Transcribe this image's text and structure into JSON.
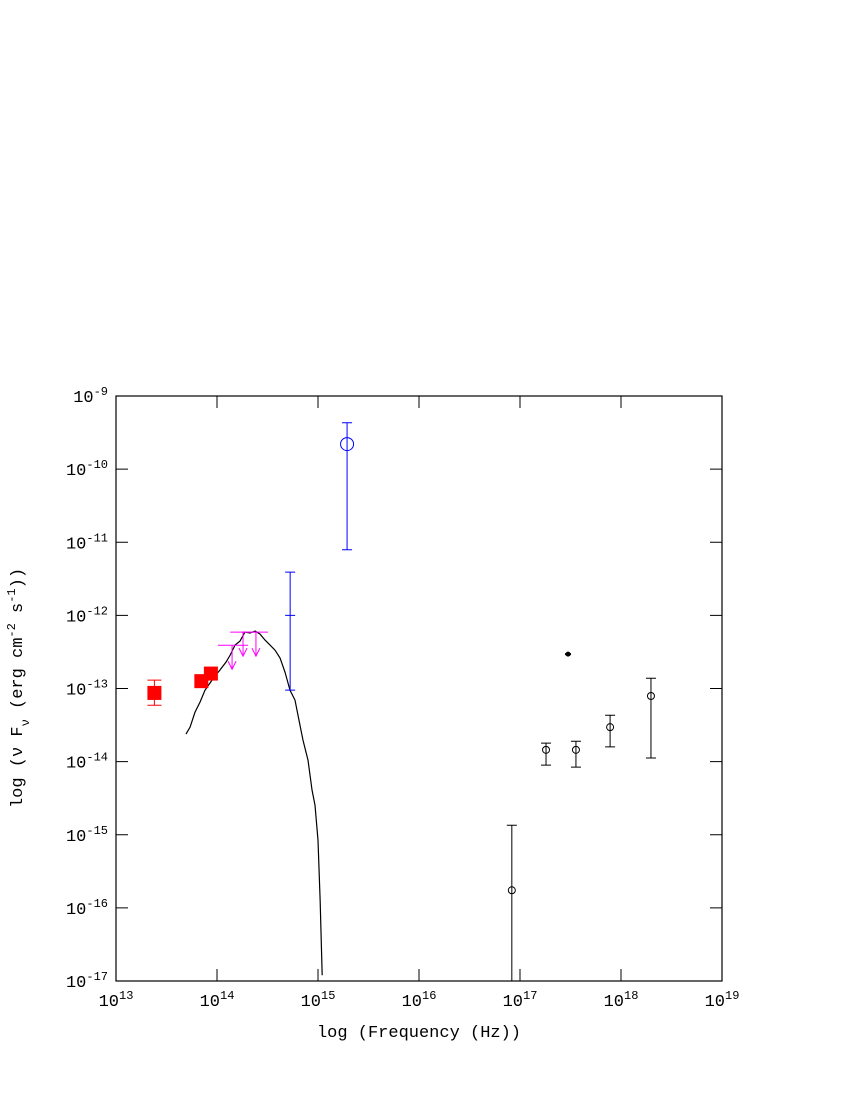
{
  "chart_data": {
    "type": "scatter",
    "xlabel": "log (Frequency (Hz))",
    "ylabel": "log (ν F_ν (erg cm^-2 s^-1))",
    "xscale": "log",
    "yscale": "log",
    "xlim": [
      10000000000000.0,
      1e+19
    ],
    "ylim": [
      1e-17,
      1e-09
    ],
    "xticks": [
      {
        "value": 10000000000000.0,
        "label": "10^13"
      },
      {
        "value": 100000000000000.0,
        "label": "10^14"
      },
      {
        "value": 1000000000000000.0,
        "label": "10^15"
      },
      {
        "value": 1e+16,
        "label": "10^16"
      },
      {
        "value": 1e+17,
        "label": "10^17"
      },
      {
        "value": 1e+18,
        "label": "10^18"
      },
      {
        "value": 1e+19,
        "label": "10^19"
      }
    ],
    "yticks": [
      {
        "value": 1e-17,
        "label": "10^-17"
      },
      {
        "value": 1e-16,
        "label": "10^-16"
      },
      {
        "value": 1e-15,
        "label": "10^-15"
      },
      {
        "value": 1e-14,
        "label": "10^-14"
      },
      {
        "value": 1e-13,
        "label": "10^-13"
      },
      {
        "value": 1e-12,
        "label": "10^-12"
      },
      {
        "value": 1e-11,
        "label": "10^-11"
      },
      {
        "value": 1e-10,
        "label": "10^-10"
      },
      {
        "value": 1e-09,
        "label": "10^-9"
      }
    ],
    "series": [
      {
        "type": "line",
        "color": "#000000",
        "x": [
          49300000000000.0,
          54100000000000.0,
          60600000000000.0,
          67900000000000.0,
          76100000000000.0,
          85300000000000.0,
          95500000000000.0,
          107000000000000.0,
          123000000000000.0,
          135000000000000.0,
          151000000000000.0,
          169000000000000.0,
          189000000000000.0,
          212000000000000.0,
          238000000000000.0,
          267000000000000.0,
          299000000000000.0,
          335000000000000.0,
          375000000000000.0,
          421000000000000.0,
          471000000000000.0,
          528000000000000.0,
          592000000000000.0,
          663000000000000.0,
          710000000000000.0,
          796000000000000.0,
          873000000000000.0,
          934000000000000.0,
          1000000000000000.0,
          1050000000000000.0,
          1100000000000000.0
        ],
        "values": [
          2.38e-14,
          2.96e-14,
          4.75e-14,
          6.52e-14,
          9.5e-14,
          1.19e-13,
          1.48e-13,
          1.79e-13,
          2.3e-13,
          2.86e-13,
          3.93e-13,
          4.45e-13,
          5.91e-13,
          5.73e-13,
          6.1e-13,
          5.54e-13,
          4.59e-13,
          3.93e-13,
          3.35e-13,
          2.61e-13,
          1.68e-13,
          9.5e-14,
          6.93e-14,
          3.16e-14,
          1.97e-14,
          1.05e-14,
          4.07e-15,
          2.54e-15,
          8.43e-16,
          1.27e-16,
          1.2e-17
        ]
      },
      {
        "type": "scatter",
        "marker": "filled-square",
        "color": "#ff0000",
        "x": [
          24000000000000.0,
          70000000000000.0,
          87000000000000.0
        ],
        "values": [
          8.7e-14,
          1.26e-13,
          1.6e-13
        ],
        "y_upper": [
          1.3e-13,
          null,
          null
        ],
        "y_lower": [
          5.9e-14,
          null,
          null
        ]
      },
      {
        "type": "upper-limit",
        "color": "#ff00ff",
        "x": [
          141000000000000.0,
          181000000000000.0,
          243000000000000.0
        ],
        "values": [
          3.9e-13,
          5.9e-13,
          5.9e-13
        ],
        "x_lower": [
          102000000000000.0,
          135000000000000.0,
          177000000000000.0
        ],
        "x_upper": [
          203000000000000.0,
          238000000000000.0,
          320000000000000.0
        ]
      },
      {
        "type": "scatter",
        "marker": "none",
        "color": "#0000ff",
        "x": [
          530000000000000.0
        ],
        "values": [
          1e-12
        ],
        "y_upper": [
          3.9e-12
        ],
        "y_lower": [
          9.5e-14
        ]
      },
      {
        "type": "scatter",
        "marker": "large-open-circle",
        "color": "#0000ff",
        "x": [
          1940000000000000.0
        ],
        "values": [
          2.2e-10
        ],
        "y_upper": [
          4.3e-10
        ],
        "y_lower": [
          7.9e-12
        ]
      },
      {
        "type": "scatter",
        "marker": "small-open-circle",
        "color": "#000000",
        "x": [
          8.3e+16,
          1.81e+17,
          3.58e+17,
          7.8e+17,
          1.98e+18
        ],
        "values": [
          1.74e-16,
          1.45e-14,
          1.45e-14,
          2.96e-14,
          7.9e-14
        ],
        "y_upper": [
          1.35e-15,
          1.79e-14,
          1.9e-14,
          4.3e-14,
          1.38e-13
        ],
        "y_lower": [
          1e-17,
          8.95e-15,
          8.4e-15,
          1.59e-14,
          1.12e-14
        ]
      },
      {
        "type": "scatter",
        "marker": "filled-circle",
        "color": "#000000",
        "x": [
          2.99e+17
        ],
        "values": [
          2.95e-13
        ],
        "x_lower": [
          2.79e+17
        ],
        "x_upper": [
          3.2e+17
        ]
      }
    ]
  }
}
